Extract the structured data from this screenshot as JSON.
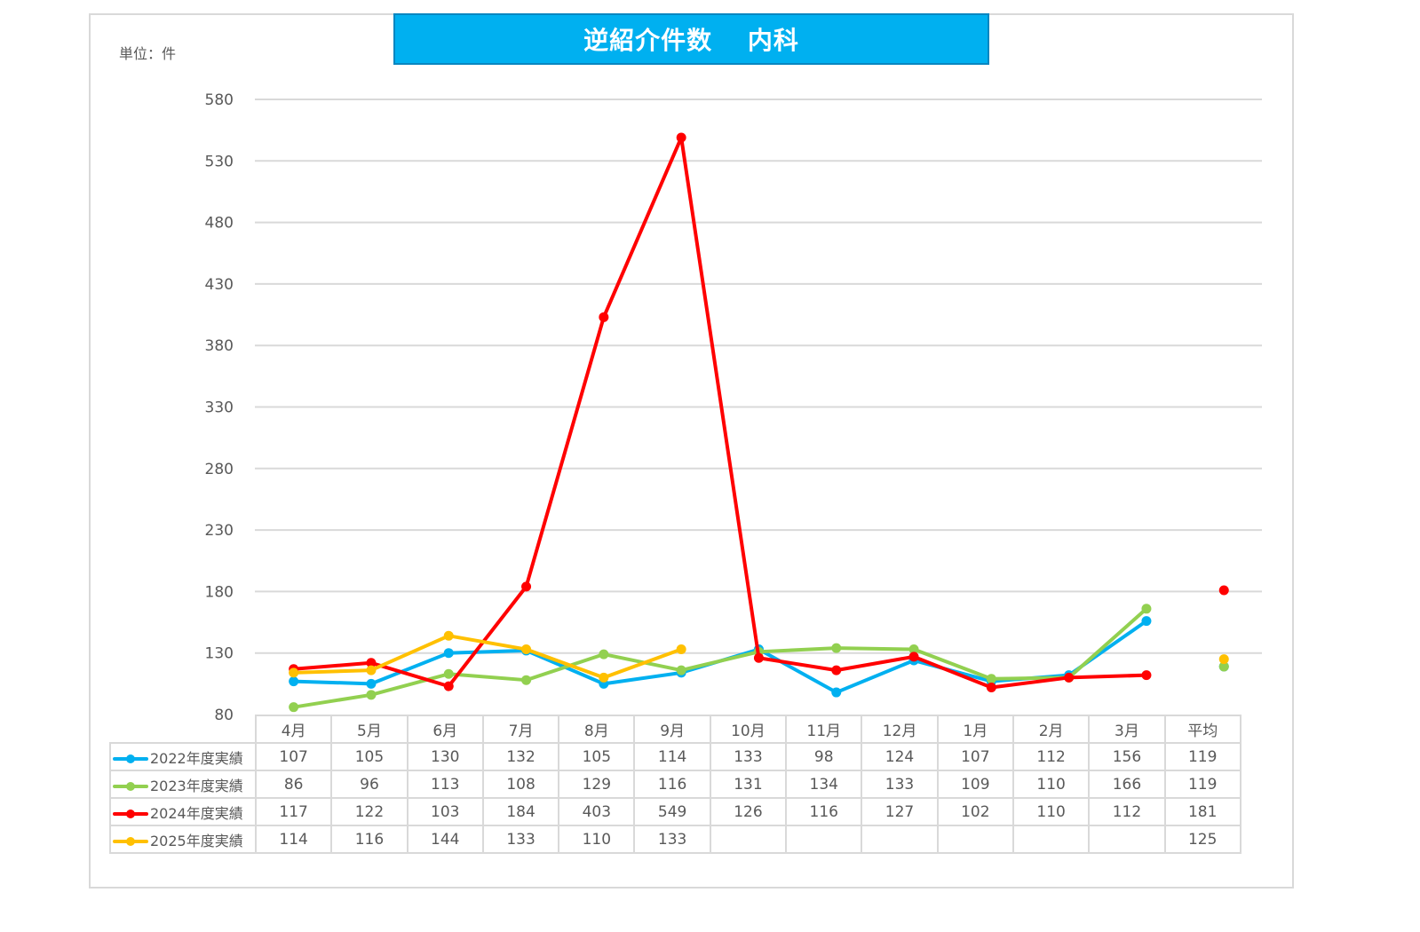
{
  "title": "逆紹介件数　 内科",
  "unit_label": "単位：件",
  "colors": {
    "title_bg": "#00b0f0",
    "s2022": "#00b0f0",
    "s2023": "#92d050",
    "s2024": "#ff0000",
    "s2025": "#ffc000",
    "grid": "#d9d9d9"
  },
  "y_ticks": [
    "580",
    "530",
    "480",
    "430",
    "380",
    "330",
    "280",
    "230",
    "180",
    "130",
    "80"
  ],
  "table": {
    "columns": [
      "4月",
      "5月",
      "6月",
      "7月",
      "8月",
      "9月",
      "10月",
      "11月",
      "12月",
      "1月",
      "2月",
      "3月",
      "平均"
    ],
    "rows": [
      {
        "label": "2022年度実績",
        "values": [
          "107",
          "105",
          "130",
          "132",
          "105",
          "114",
          "133",
          "98",
          "124",
          "107",
          "112",
          "156",
          "119"
        ]
      },
      {
        "label": "2023年度実績",
        "values": [
          "86",
          "96",
          "113",
          "108",
          "129",
          "116",
          "131",
          "134",
          "133",
          "109",
          "110",
          "166",
          "119"
        ]
      },
      {
        "label": "2024年度実績",
        "values": [
          "117",
          "122",
          "103",
          "184",
          "403",
          "549",
          "126",
          "116",
          "127",
          "102",
          "110",
          "112",
          "181"
        ]
      },
      {
        "label": "2025年度実績",
        "values": [
          "114",
          "116",
          "144",
          "133",
          "110",
          "133",
          "",
          "",
          "",
          "",
          "",
          "",
          "125"
        ]
      }
    ]
  },
  "chart_data": {
    "type": "line",
    "title": "逆紹介件数　内科",
    "ylabel": "単位：件",
    "xlabel": "",
    "categories": [
      "4月",
      "5月",
      "6月",
      "7月",
      "8月",
      "9月",
      "10月",
      "11月",
      "12月",
      "1月",
      "2月",
      "3月"
    ],
    "ylim": [
      80,
      580
    ],
    "y_ticks": [
      80,
      130,
      180,
      230,
      280,
      330,
      380,
      430,
      480,
      530,
      580
    ],
    "grid": true,
    "legend_position": "data-table-left",
    "series": [
      {
        "name": "2022年度実績",
        "color": "#00b0f0",
        "values": [
          107,
          105,
          130,
          132,
          105,
          114,
          133,
          98,
          124,
          107,
          112,
          156
        ],
        "average": 119
      },
      {
        "name": "2023年度実績",
        "color": "#92d050",
        "values": [
          86,
          96,
          113,
          108,
          129,
          116,
          131,
          134,
          133,
          109,
          110,
          166
        ],
        "average": 119
      },
      {
        "name": "2024年度実績",
        "color": "#ff0000",
        "values": [
          117,
          122,
          103,
          184,
          403,
          549,
          126,
          116,
          127,
          102,
          110,
          112
        ],
        "average": 181
      },
      {
        "name": "2025年度実績",
        "color": "#ffc000",
        "values": [
          114,
          116,
          144,
          133,
          110,
          133,
          null,
          null,
          null,
          null,
          null,
          null
        ],
        "average": 125
      }
    ]
  }
}
